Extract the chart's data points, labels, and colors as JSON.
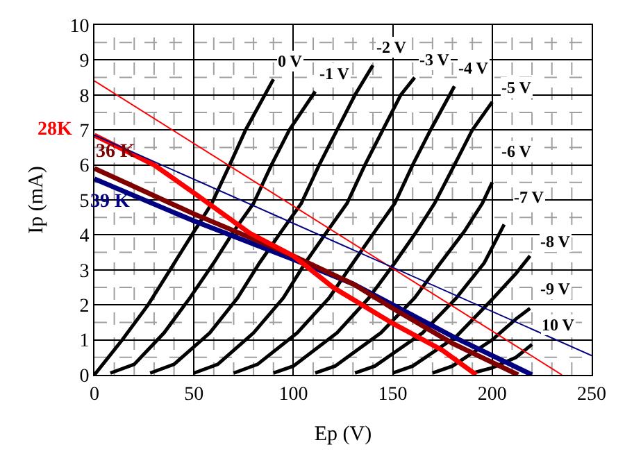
{
  "chart_data": {
    "type": "line",
    "xlabel": "Ep (V)",
    "ylabel": "Ip (mA)",
    "xlim": [
      0,
      250
    ],
    "xticks": [
      0,
      50,
      100,
      150,
      200,
      250
    ],
    "ylim": [
      0,
      10
    ],
    "yticks": [
      0,
      1,
      2,
      3,
      4,
      5,
      6,
      7,
      8,
      9,
      10
    ],
    "grid": true,
    "legend": false,
    "marker": "none",
    "line_style": "solid",
    "series": [
      {
        "name": "0 V",
        "color": "#000000",
        "x": [
          0,
          14,
          27,
          38,
          49,
          59,
          68,
          76,
          90
        ],
        "values": [
          0,
          1,
          2,
          3,
          4,
          4.9,
          6,
          7,
          8.45
        ]
      },
      {
        "name": "-1 V",
        "color": "#000000",
        "x": [
          8,
          20,
          35,
          48,
          60,
          70,
          80,
          89,
          98,
          111
        ],
        "values": [
          0.05,
          0.3,
          1.2,
          2.2,
          3.2,
          4.1,
          4.9,
          6,
          7,
          8.1
        ]
      },
      {
        "name": "-2 V",
        "color": "#000000",
        "x": [
          28,
          40,
          58,
          72,
          83,
          94,
          104,
          113,
          122,
          131,
          140
        ],
        "values": [
          0.05,
          0.3,
          1.2,
          2.2,
          3.2,
          4.1,
          4.9,
          6,
          7,
          8,
          8.85
        ]
      },
      {
        "name": "-3 V",
        "color": "#000000",
        "x": [
          50,
          62,
          80,
          95,
          106,
          117,
          127,
          136,
          145,
          154,
          161
        ],
        "values": [
          0.05,
          0.3,
          1.2,
          2.2,
          3.2,
          4.1,
          4.9,
          6,
          7,
          8,
          8.5
        ]
      },
      {
        "name": "-4 V",
        "color": "#000000",
        "x": [
          70,
          82,
          102,
          118,
          130,
          141,
          151,
          160,
          169,
          181
        ],
        "values": [
          0.05,
          0.3,
          1.2,
          2.2,
          3.2,
          4.1,
          4.9,
          6,
          7,
          8.25
        ]
      },
      {
        "name": "-5 V",
        "color": "#000000",
        "x": [
          90,
          100,
          122,
          138,
          151,
          162,
          171,
          181,
          190,
          200
        ],
        "values": [
          0.05,
          0.25,
          1.2,
          2.2,
          3.2,
          4.1,
          4.9,
          6,
          7,
          7.8
        ]
      },
      {
        "name": "-6 V",
        "color": "#000000",
        "x": [
          111,
          121,
          144,
          161,
          174,
          186,
          195,
          200
        ],
        "values": [
          0.05,
          0.25,
          1.2,
          2.2,
          3.2,
          4.1,
          4.9,
          5.5
        ]
      },
      {
        "name": "-7 V",
        "color": "#000000",
        "x": [
          131,
          141,
          165,
          182,
          196,
          206
        ],
        "values": [
          0.05,
          0.25,
          1.2,
          2.2,
          3.2,
          4.3
        ]
      },
      {
        "name": "-8 V",
        "color": "#000000",
        "x": [
          150,
          160,
          182,
          199,
          212,
          219
        ],
        "values": [
          0.05,
          0.25,
          1.1,
          2.1,
          2.9,
          3.4
        ]
      },
      {
        "name": "-9 V",
        "color": "#000000",
        "x": [
          170,
          180,
          200,
          212,
          219
        ],
        "values": [
          0.05,
          0.25,
          1.0,
          1.6,
          1.9
        ]
      },
      {
        "name": "10 V",
        "color": "#000000",
        "x": [
          190,
          200,
          212,
          220
        ],
        "values": [
          0.05,
          0.2,
          0.5,
          0.87
        ]
      },
      {
        "name": "39 K",
        "color": "#000080",
        "x": [
          0,
          50,
          100,
          130,
          150,
          180,
          220
        ],
        "values": [
          5.6,
          4.4,
          3.3,
          2.6,
          2.0,
          1.1,
          0
        ]
      },
      {
        "name": "36 K",
        "color": "#800000",
        "x": [
          0,
          50,
          100,
          130,
          150,
          180,
          213
        ],
        "values": [
          5.9,
          4.6,
          3.4,
          2.6,
          1.9,
          0.9,
          0
        ]
      },
      {
        "name": "28K",
        "color": "#ff0000",
        "x": [
          0,
          30,
          50,
          78,
          100,
          120,
          150,
          175,
          192
        ],
        "values": [
          6.85,
          6.0,
          5.2,
          4.05,
          3.4,
          2.5,
          1.47,
          0.7,
          0
        ]
      },
      {
        "color": "#ff0000",
        "x": [
          0,
          235
        ],
        "values": [
          8.4,
          0
        ]
      },
      {
        "color": "#000080",
        "x": [
          0,
          250
        ],
        "values": [
          6.85,
          0.55
        ]
      }
    ]
  }
}
